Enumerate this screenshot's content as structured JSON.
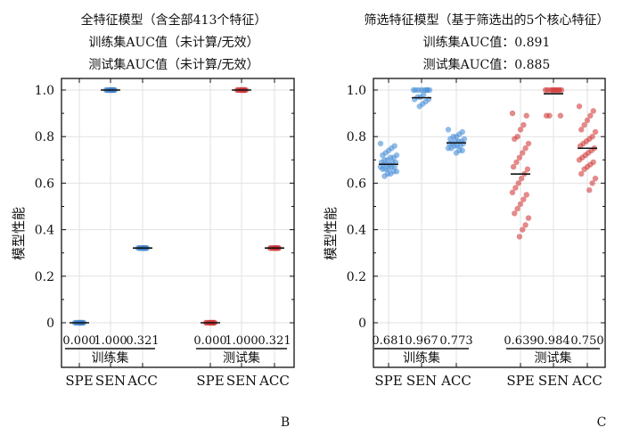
{
  "panels": [
    {
      "title_lines": [
        "全特征模型（含全部413个特征）",
        "训练集AUC值（未计算/无效）",
        "测试集AUC值（未计算/无效）"
      ],
      "ylabel": "模型性能",
      "panel_letter": "B"
    },
    {
      "title_lines": [
        "筛选特征模型（基于筛选出的5个核心特征）",
        "训练集AUC值：0.891",
        "测试集AUC值：0.885"
      ],
      "ylabel": "模型性能",
      "panel_letter": "C"
    }
  ],
  "chart_data": [
    {
      "type": "scatter",
      "title": "全特征模型（含全部413个特征）",
      "ylabel": "模型性能",
      "ylim": [
        0,
        1.0
      ],
      "yticks": [
        "0",
        "0.2",
        "0.4",
        "0.6",
        "0.8",
        "1.0"
      ],
      "grid": true,
      "categories": [
        "SPE",
        "SEN",
        "ACC"
      ],
      "groups": [
        "训练集",
        "测试集"
      ],
      "series": [
        {
          "name": "训练集",
          "color": "#3a7ec8",
          "points": [
            {
              "category": "SPE",
              "mean": 0.0,
              "label": "0.000",
              "values": [
                0,
                0,
                0,
                0,
                0,
                0,
                0,
                0,
                0,
                0
              ]
            },
            {
              "category": "SEN",
              "mean": 1.0,
              "label": "1.000",
              "values": [
                1,
                1,
                1,
                1,
                1,
                1,
                1,
                1,
                1,
                1
              ]
            },
            {
              "category": "ACC",
              "mean": 0.321,
              "label": "0.321",
              "values": [
                0.321,
                0.321,
                0.321,
                0.321,
                0.321,
                0.321,
                0.321,
                0.321,
                0.321,
                0.321
              ]
            }
          ]
        },
        {
          "name": "测试集",
          "color": "#cc3333",
          "points": [
            {
              "category": "SPE",
              "mean": 0.0,
              "label": "0.000",
              "values": [
                0,
                0,
                0,
                0,
                0,
                0,
                0,
                0,
                0,
                0
              ]
            },
            {
              "category": "SEN",
              "mean": 1.0,
              "label": "1.000",
              "values": [
                1,
                1,
                1,
                1,
                1,
                1,
                1,
                1,
                1,
                1
              ]
            },
            {
              "category": "ACC",
              "mean": 0.321,
              "label": "0.321",
              "values": [
                0.321,
                0.321,
                0.321,
                0.321,
                0.321,
                0.321,
                0.321,
                0.321,
                0.321,
                0.321
              ]
            }
          ]
        }
      ]
    },
    {
      "type": "scatter",
      "title": "筛选特征模型（基于筛选出的5个核心特征）",
      "ylabel": "模型性能",
      "ylim": [
        0,
        1.0
      ],
      "yticks": [
        "0",
        "0.2",
        "0.4",
        "0.6",
        "0.8",
        "1.0"
      ],
      "grid": true,
      "categories": [
        "SPE",
        "SEN",
        "ACC"
      ],
      "groups": [
        "训练集",
        "测试集"
      ],
      "series": [
        {
          "name": "训练集",
          "color": "#4a8fd8",
          "points": [
            {
              "category": "SPE",
              "mean": 0.681,
              "label": "0.681",
              "values": [
                0.77,
                0.76,
                0.75,
                0.74,
                0.73,
                0.72,
                0.72,
                0.71,
                0.71,
                0.7,
                0.7,
                0.69,
                0.69,
                0.69,
                0.68,
                0.68,
                0.68,
                0.67,
                0.67,
                0.67,
                0.66,
                0.66,
                0.66,
                0.65,
                0.65,
                0.64,
                0.64,
                0.63
              ]
            },
            {
              "category": "SEN",
              "mean": 0.967,
              "label": "0.967",
              "values": [
                1.0,
                1.0,
                1.0,
                1.0,
                1.0,
                1.0,
                1.0,
                1.0,
                0.98,
                0.97,
                0.97,
                0.96,
                0.96,
                0.95,
                0.94,
                0.93
              ]
            },
            {
              "category": "ACC",
              "mean": 0.773,
              "label": "0.773",
              "values": [
                0.83,
                0.82,
                0.81,
                0.8,
                0.8,
                0.79,
                0.79,
                0.78,
                0.78,
                0.78,
                0.77,
                0.77,
                0.77,
                0.76,
                0.76,
                0.76,
                0.75,
                0.75,
                0.74,
                0.74,
                0.73
              ]
            }
          ]
        },
        {
          "name": "测试集",
          "color": "#d23c3c",
          "points": [
            {
              "category": "SPE",
              "mean": 0.639,
              "label": "0.639",
              "values": [
                0.9,
                0.89,
                0.85,
                0.83,
                0.8,
                0.79,
                0.77,
                0.75,
                0.73,
                0.71,
                0.69,
                0.67,
                0.66,
                0.64,
                0.62,
                0.6,
                0.58,
                0.56,
                0.55,
                0.53,
                0.51,
                0.49,
                0.47,
                0.45,
                0.42,
                0.4,
                0.37
              ]
            },
            {
              "category": "SEN",
              "mean": 0.984,
              "label": "0.984",
              "values": [
                1.0,
                1.0,
                1.0,
                1.0,
                1.0,
                1.0,
                1.0,
                1.0,
                1.0,
                1.0,
                0.89,
                0.89,
                0.89
              ]
            },
            {
              "category": "ACC",
              "mean": 0.75,
              "label": "0.750",
              "values": [
                0.93,
                0.91,
                0.89,
                0.87,
                0.85,
                0.83,
                0.82,
                0.8,
                0.79,
                0.78,
                0.77,
                0.76,
                0.75,
                0.74,
                0.73,
                0.72,
                0.71,
                0.7,
                0.69,
                0.68,
                0.67,
                0.66,
                0.64,
                0.62,
                0.6,
                0.57
              ]
            }
          ]
        }
      ]
    }
  ]
}
